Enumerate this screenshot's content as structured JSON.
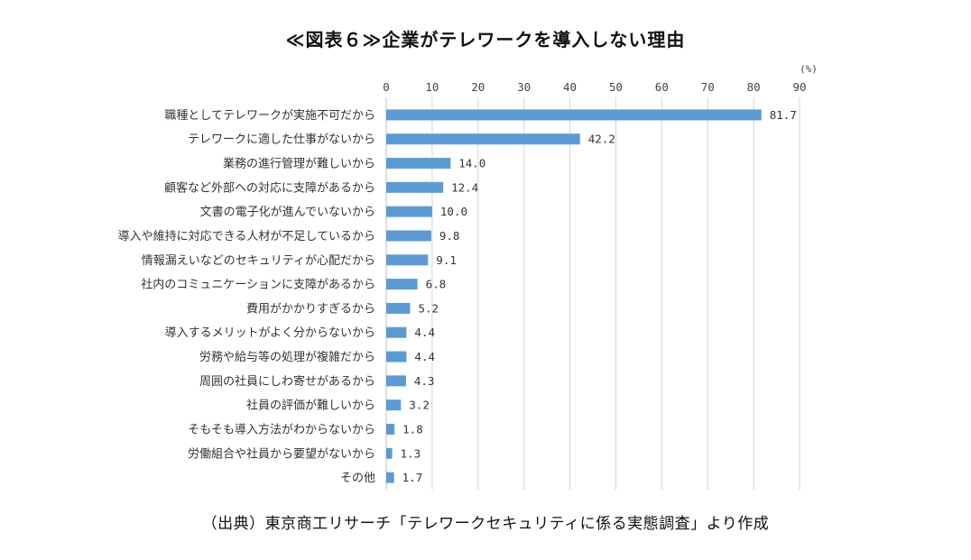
{
  "header": {
    "title": "≪図表６≫企業がテレワークを導入しない理由"
  },
  "footer": {
    "source": "（出典）東京商工リサーチ「テレワークセキュリティに係る実態調査」より作成"
  },
  "chart_data": {
    "type": "bar",
    "orientation": "horizontal",
    "unit": "(%)",
    "xlim": [
      0,
      90
    ],
    "xticks": [
      0,
      10,
      20,
      30,
      40,
      50,
      60,
      70,
      80,
      90
    ],
    "xtick_labels": [
      "0",
      "10",
      "20",
      "30",
      "40",
      "50",
      "60",
      "70",
      "80",
      "90"
    ],
    "axis_position": "top",
    "grid": true,
    "bar_color": "#5b9bd5",
    "categories": [
      "職種としてテレワークが実施不可だから",
      "テレワークに適した仕事がないから",
      "業務の進行管理が難しいから",
      "顧客など外部への対応に支障があるから",
      "文書の電子化が進んでいないから",
      "導入や維持に対応できる人材が不足しているから",
      "情報漏えいなどのセキュリティが心配だから",
      "社内のコミュニケーションに支障があるから",
      "費用がかかりすぎるから",
      "導入するメリットがよく分からないから",
      "労務や給与等の処理が複雑だから",
      "周囲の社員にしわ寄せがあるから",
      "社員の評価が難しいから",
      "そもそも導入方法がわからないから",
      "労働組合や社員から要望がないから",
      "その他"
    ],
    "values": [
      81.7,
      42.2,
      14.0,
      12.4,
      10.0,
      9.8,
      9.1,
      6.8,
      5.2,
      4.4,
      4.4,
      4.3,
      3.2,
      1.8,
      1.3,
      1.7
    ],
    "value_labels": [
      "81.7",
      "42.2",
      "14.0",
      "12.4",
      "10.0",
      "9.8",
      "9.1",
      "6.8",
      "5.2",
      "4.4",
      "4.4",
      "4.3",
      "3.2",
      "1.8",
      "1.3",
      "1.7"
    ]
  }
}
